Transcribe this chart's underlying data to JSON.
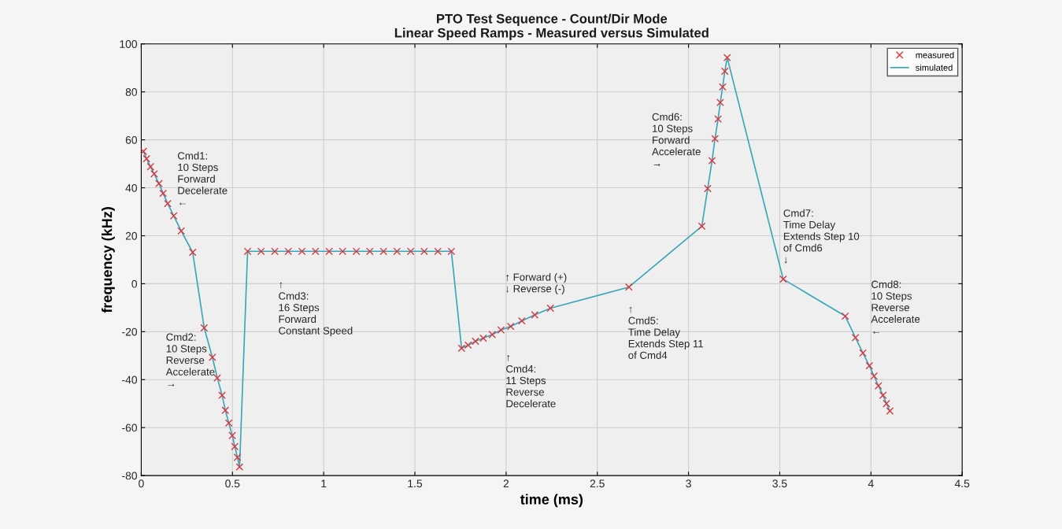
{
  "chart_data": {
    "type": "line",
    "title": "PTO Test Sequence - Count/Dir Mode\nLinear Speed Ramps - Measured versus Simulated",
    "xlabel": "time (ms)",
    "ylabel": "frequency (kHz)",
    "x": [
      0.012,
      0.029,
      0.051,
      0.071,
      0.097,
      0.12,
      0.145,
      0.178,
      0.219,
      0.282,
      0.345,
      0.39,
      0.417,
      0.443,
      0.461,
      0.48,
      0.499,
      0.513,
      0.527,
      0.539,
      0.583,
      0.657,
      0.732,
      0.806,
      0.881,
      0.955,
      1.03,
      1.104,
      1.179,
      1.253,
      1.328,
      1.402,
      1.477,
      1.551,
      1.626,
      1.7,
      1.756,
      1.792,
      1.832,
      1.875,
      1.924,
      1.972,
      2.025,
      2.086,
      2.157,
      2.243,
      2.673,
      3.073,
      3.105,
      3.129,
      3.145,
      3.162,
      3.174,
      3.187,
      3.199,
      3.212,
      3.519,
      3.859,
      3.915,
      3.956,
      3.991,
      4.017,
      4.041,
      4.066,
      4.085,
      4.104
    ],
    "series": [
      {
        "name": "measured",
        "type": "scatter",
        "marker": "cross",
        "color": "#d9363e",
        "values": [
          55.2,
          52.1,
          48.8,
          45.8,
          41.8,
          37.7,
          33.4,
          28.3,
          22.0,
          13.1,
          -18.4,
          -30.7,
          -39.3,
          -46.5,
          -52.8,
          -58.1,
          -63.3,
          -67.9,
          -72.4,
          -76.4,
          13.5,
          13.5,
          13.5,
          13.5,
          13.5,
          13.5,
          13.5,
          13.5,
          13.5,
          13.5,
          13.5,
          13.5,
          13.5,
          13.5,
          13.5,
          13.5,
          -26.9,
          -25.6,
          -24.0,
          -22.7,
          -21.2,
          -19.3,
          -17.8,
          -15.5,
          -13.0,
          -10.2,
          -1.4,
          24.0,
          39.7,
          51.3,
          60.5,
          68.7,
          75.6,
          82.1,
          88.6,
          94.3,
          1.9,
          -13.5,
          -22.5,
          -28.9,
          -34.2,
          -38.5,
          -42.6,
          -46.5,
          -50.0,
          -53.1
        ]
      },
      {
        "name": "simulated",
        "marker": "none",
        "color": "#3aa6b9",
        "values": [
          55.2,
          52.1,
          48.8,
          45.8,
          41.8,
          37.7,
          33.4,
          28.3,
          22.0,
          13.1,
          -18.4,
          -30.7,
          -39.3,
          -46.5,
          -52.8,
          -58.1,
          -63.3,
          -67.9,
          -72.4,
          -76.4,
          13.5,
          13.5,
          13.5,
          13.5,
          13.5,
          13.5,
          13.5,
          13.5,
          13.5,
          13.5,
          13.5,
          13.5,
          13.5,
          13.5,
          13.5,
          13.5,
          -26.9,
          -25.6,
          -24.0,
          -22.7,
          -21.2,
          -19.3,
          -17.8,
          -15.5,
          -13.0,
          -10.2,
          -1.4,
          24.0,
          39.7,
          51.3,
          60.5,
          68.7,
          75.6,
          82.1,
          88.6,
          94.3,
          1.9,
          -13.5,
          -22.5,
          -28.9,
          -34.2,
          -38.5,
          -42.6,
          -46.5,
          -50.0,
          -53.1
        ]
      }
    ],
    "xlim": [
      0,
      4.5
    ],
    "xticks": [
      0,
      0.5,
      1,
      1.5,
      2,
      2.5,
      3,
      3.5,
      4,
      4.5
    ],
    "ylim": [
      -80,
      100
    ],
    "yticks": [
      -80,
      -60,
      -40,
      -20,
      0,
      20,
      40,
      60,
      80,
      100
    ],
    "grid": true,
    "legend": "top right",
    "line_style": "solid",
    "annotations": [
      "Cmd1:\n10 Steps\nForward\nDecelerate\n←",
      "Cmd2:\n10 Steps\nReverse\nAccelerate\n→",
      "↑\nCmd3:\n16 Steps\nForward\nConstant Speed",
      "↑ Forward (+)\n↓ Reverse (-)",
      "↑\nCmd4:\n11 Steps\nReverse\nDecelerate",
      "↑\nCmd5:\nTime Delay\nExtends Step 11\nof Cmd4",
      "Cmd6:\n10 Steps\nForward\nAccelerate\n→",
      "Cmd7:\nTime Delay\nExtends Step 10\nof Cmd6\n↓",
      "Cmd8:\n10 Steps\nReverse\nAccelerate\n←"
    ]
  }
}
